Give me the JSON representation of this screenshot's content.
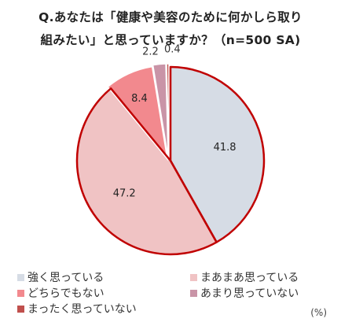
{
  "title_lines": [
    "Q.あなたは「健康や美容のために何かしら取り",
    "組みたい」と思っていますか？（n=500 SA)"
  ],
  "unit_label": "(%)",
  "chart_data": {
    "type": "pie",
    "title": "Q.あなたは「健康や美容のために何かしら取り組みたい」と思っていますか？（n=500 SA)",
    "start_angle": "12 o'clock",
    "direction": "clockwise",
    "slices": [
      {
        "label": "強く思っている",
        "value": 41.8,
        "color": "#d6dce5",
        "value_label": "41.8"
      },
      {
        "label": "まあまあ思っている",
        "value": 47.2,
        "color": "#f0c3c4",
        "value_label": "47.2"
      },
      {
        "label": "どちらでもない",
        "value": 8.4,
        "color": "#f2898e",
        "value_label": "8.4"
      },
      {
        "label": "あまり思っていない",
        "value": 2.2,
        "color": "#c994a7",
        "value_label": "2.2"
      },
      {
        "label": "まったく思っていない",
        "value": 0.4,
        "color": "#c0504d",
        "value_label": "0.4"
      }
    ],
    "highlighted_slices": [
      "強く思っている",
      "まあまあ思っている"
    ],
    "highlight_color": "#c00000",
    "legend_position": "bottom"
  }
}
